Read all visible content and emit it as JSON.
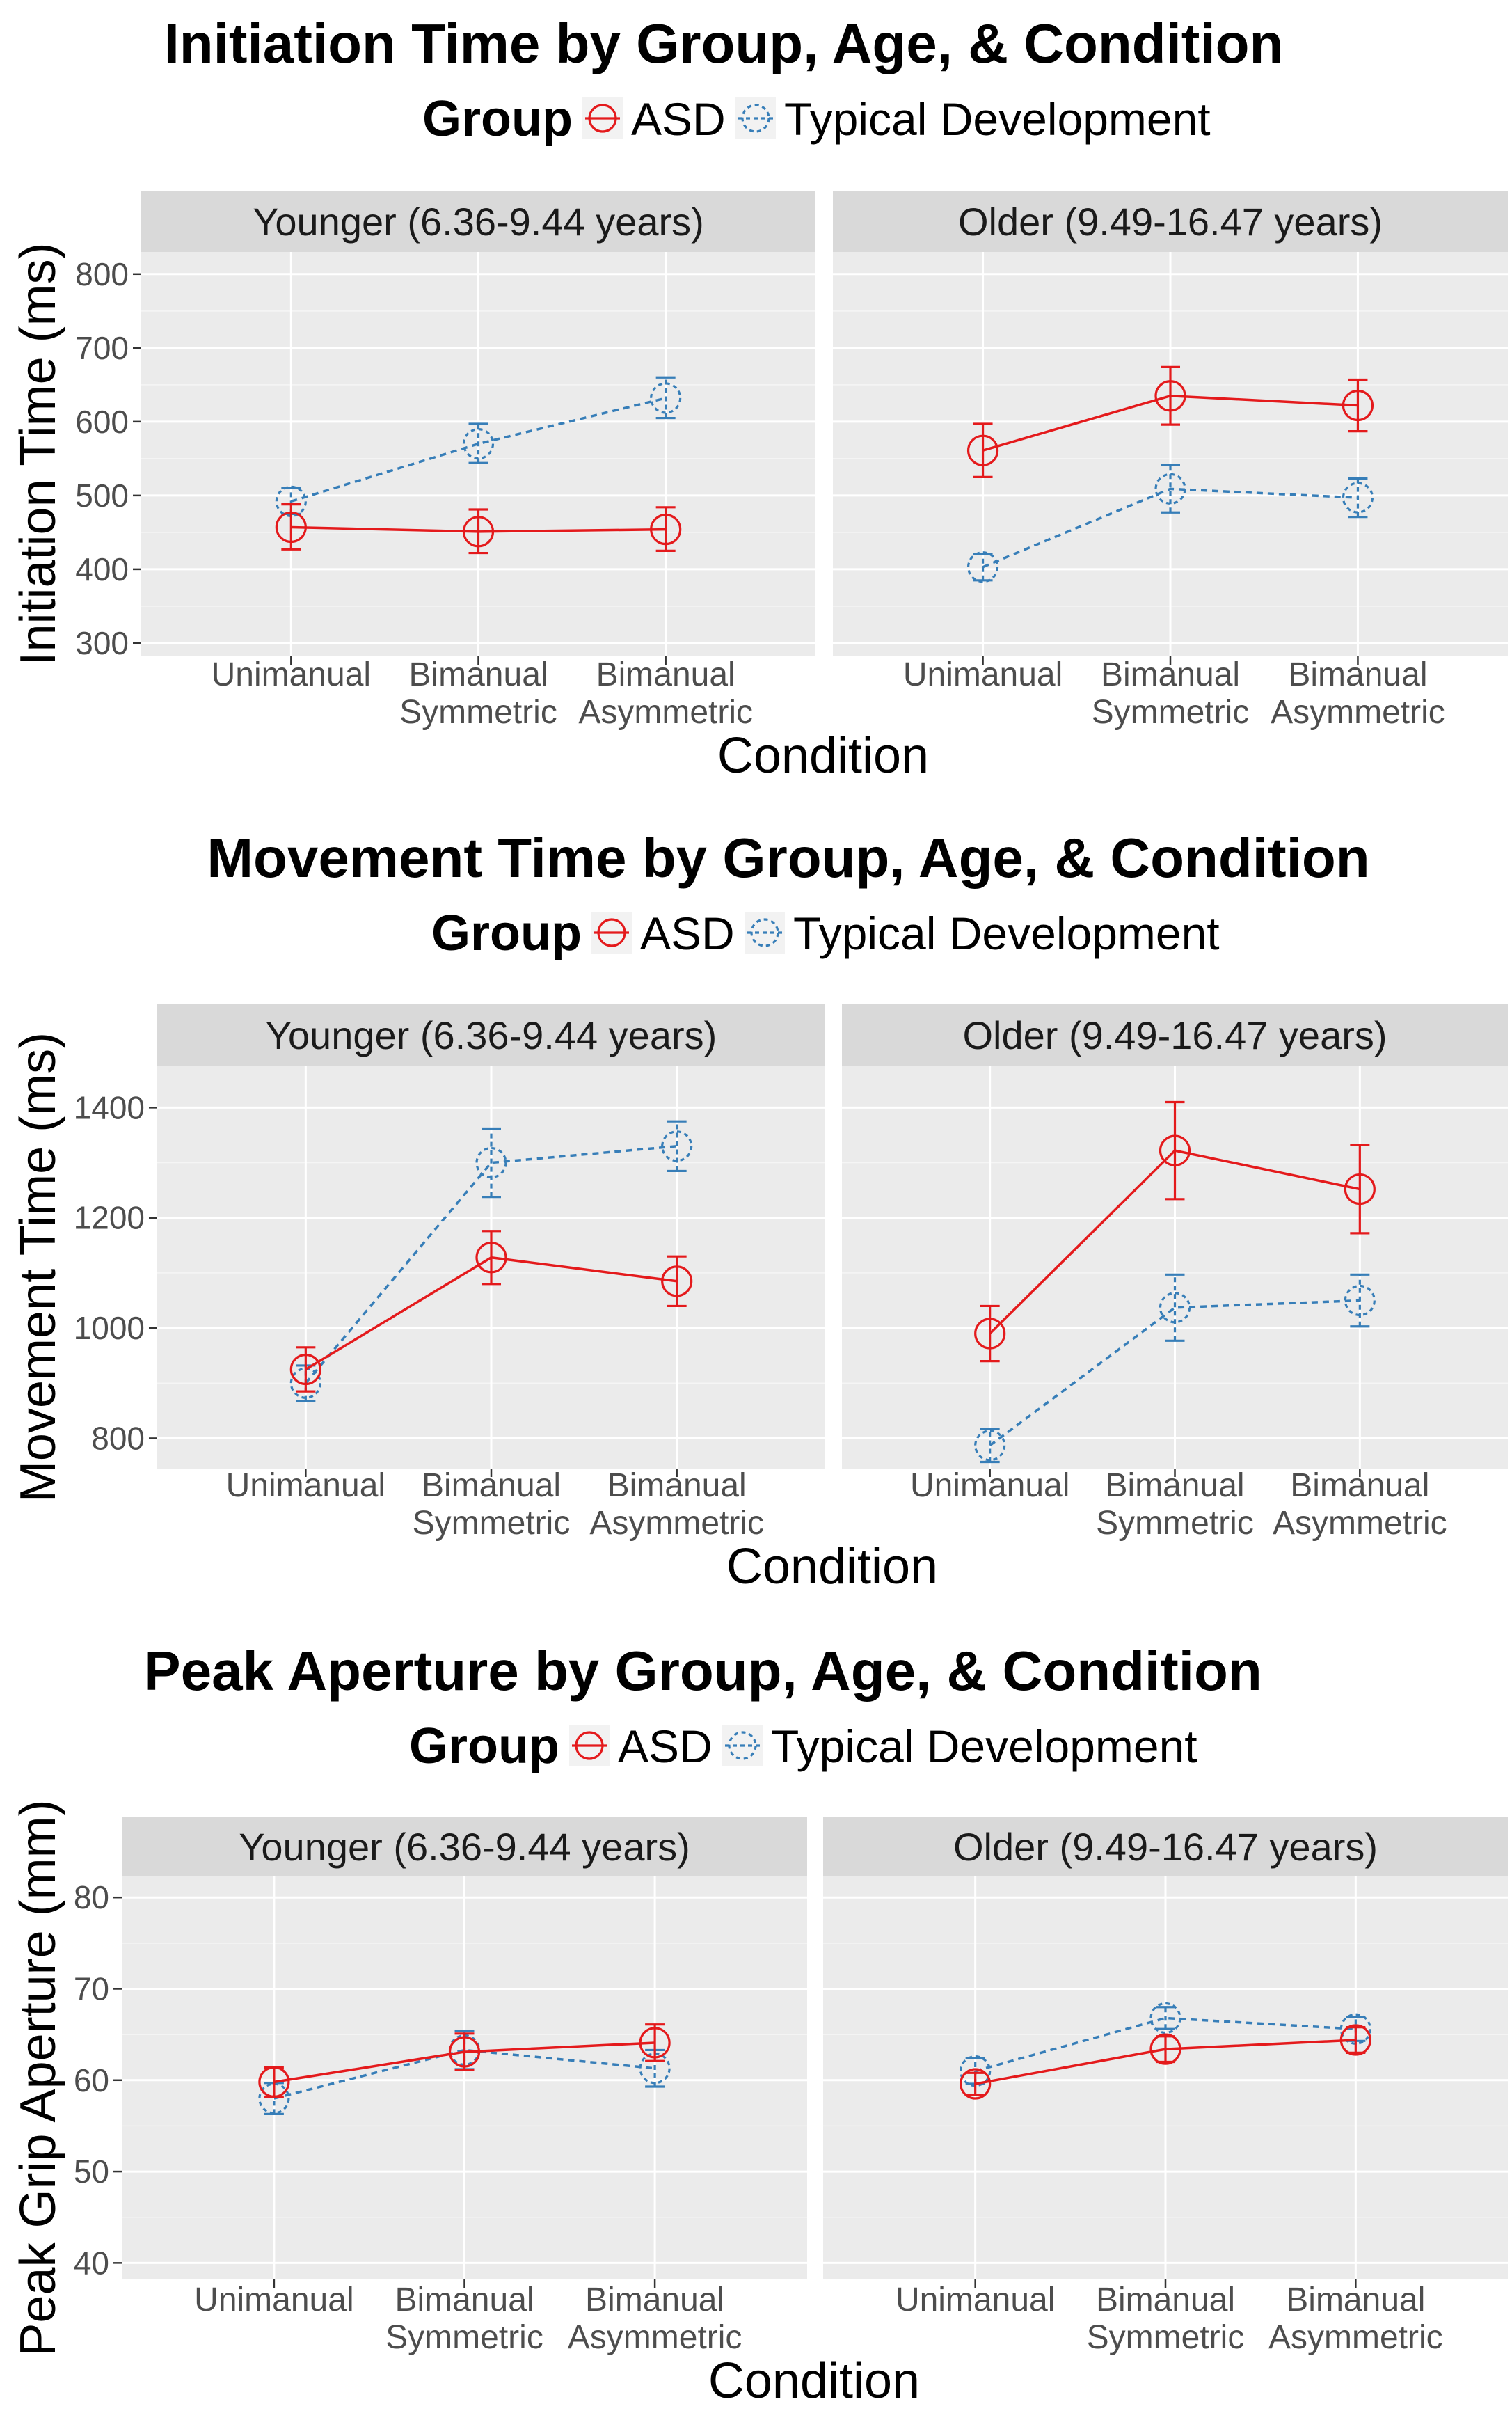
{
  "chart_data": [
    {
      "type": "line",
      "title": "Initiation Time by Group, Age, & Condition",
      "legend_title": "Group",
      "legend_position": "top",
      "xlabel": "Condition",
      "ylabel": "Initiation Time (ms)",
      "ylim": [
        282,
        830
      ],
      "yticks": [
        300,
        400,
        500,
        600,
        700,
        800
      ],
      "categories": [
        "Unimanual",
        "Bimanual Symmetric",
        "Bimanual Asymmetric"
      ],
      "panels": [
        {
          "label": "Younger (6.36-9.44 years)",
          "series": [
            {
              "name": "ASD",
              "values": [
                457,
                451,
                454
              ],
              "lower": [
                427,
                422,
                425
              ],
              "upper": [
                488,
                481,
                484
              ]
            },
            {
              "name": "Typical Development",
              "values": [
                492,
                570,
                632
              ],
              "lower": [
                475,
                544,
                605
              ],
              "upper": [
                510,
                597,
                660
              ]
            }
          ]
        },
        {
          "label": "Older (9.49-16.47 years)",
          "series": [
            {
              "name": "ASD",
              "values": [
                561,
                635,
                622
              ],
              "lower": [
                525,
                596,
                587
              ],
              "upper": [
                597,
                674,
                657
              ]
            },
            {
              "name": "Typical Development",
              "values": [
                403,
                509,
                497
              ],
              "lower": [
                385,
                477,
                471
              ],
              "upper": [
                421,
                541,
                523
              ]
            }
          ]
        }
      ]
    },
    {
      "type": "line",
      "title": "Movement Time by Group, Age, & Condition",
      "legend_title": "Group",
      "legend_position": "top",
      "xlabel": "Condition",
      "ylabel": "Movement Time (ms)",
      "ylim": [
        745,
        1475
      ],
      "yticks": [
        800,
        1000,
        1200,
        1400
      ],
      "categories": [
        "Unimanual",
        "Bimanual Symmetric",
        "Bimanual Asymmetric"
      ],
      "panels": [
        {
          "label": "Younger (6.36-9.44 years)",
          "series": [
            {
              "name": "ASD",
              "values": [
                925,
                1128,
                1085
              ],
              "lower": [
                885,
                1080,
                1040
              ],
              "upper": [
                965,
                1176,
                1130
              ]
            },
            {
              "name": "Typical Development",
              "values": [
                900,
                1300,
                1330
              ],
              "lower": [
                868,
                1238,
                1285
              ],
              "upper": [
                932,
                1362,
                1375
              ]
            }
          ]
        },
        {
          "label": "Older (9.49-16.47 years)",
          "series": [
            {
              "name": "ASD",
              "values": [
                990,
                1322,
                1252
              ],
              "lower": [
                940,
                1234,
                1172
              ],
              "upper": [
                1040,
                1410,
                1332
              ]
            },
            {
              "name": "Typical Development",
              "values": [
                787,
                1037,
                1050
              ],
              "lower": [
                757,
                977,
                1003
              ],
              "upper": [
                817,
                1097,
                1097
              ]
            }
          ]
        }
      ]
    },
    {
      "type": "line",
      "title": "Peak Aperture by Group, Age, & Condition",
      "legend_title": "Group",
      "legend_position": "top",
      "xlabel": "Condition",
      "ylabel": "Peak Grip Aperture (mm)",
      "ylim": [
        38.2,
        82.3
      ],
      "yticks": [
        40,
        50,
        60,
        70,
        80
      ],
      "categories": [
        "Unimanual",
        "Bimanual Symmetric",
        "Bimanual Asymmetric"
      ],
      "panels": [
        {
          "label": "Younger (6.36-9.44 years)",
          "series": [
            {
              "name": "ASD",
              "values": [
                59.8,
                63.1,
                64.1
              ],
              "lower": [
                58.2,
                61.1,
                62.1
              ],
              "upper": [
                61.4,
                65.1,
                66.1
              ]
            },
            {
              "name": "Typical Development",
              "values": [
                58.0,
                63.3,
                61.3
              ],
              "lower": [
                56.3,
                61.2,
                59.3
              ],
              "upper": [
                59.7,
                65.4,
                63.3
              ]
            }
          ]
        },
        {
          "label": "Older (9.49-16.47 years)",
          "series": [
            {
              "name": "ASD",
              "values": [
                59.6,
                63.4,
                64.4
              ],
              "lower": [
                58.4,
                62.0,
                63.0
              ],
              "upper": [
                60.8,
                64.8,
                65.8
              ]
            },
            {
              "name": "Typical Development",
              "values": [
                61.0,
                66.8,
                65.6
              ],
              "lower": [
                59.6,
                65.6,
                64.3
              ],
              "upper": [
                62.4,
                68.0,
                66.9
              ]
            }
          ]
        }
      ]
    }
  ],
  "colors": {
    "ASD": "#e41a1c",
    "Typical Development": "#377eb8",
    "panel_bg": "#ebebeb",
    "strip_bg": "#d9d9d9",
    "grid": "#ffffff",
    "axis_text": "#4d4d4d"
  }
}
